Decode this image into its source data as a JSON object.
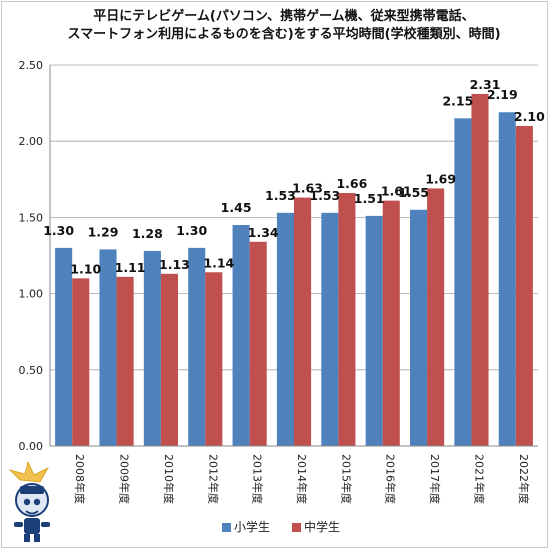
{
  "chart_data": {
    "type": "bar",
    "title_lines": [
      "平日にテレビゲーム(パソコン、携帯ゲーム機、従来型携帯電話、",
      "スマートフォン利用によるものを含む)をする平均時間(学校種類別、時間)"
    ],
    "categories": [
      "2008年度",
      "2009年度",
      "2010年度",
      "2012年度",
      "2013年度",
      "2014年度",
      "2015年度",
      "2016年度",
      "2017年度",
      "2021年度",
      "2022年度"
    ],
    "series": [
      {
        "name": "小学生",
        "color": "#4f81bd",
        "values": [
          1.3,
          1.29,
          1.28,
          1.3,
          1.45,
          1.53,
          1.53,
          1.51,
          1.55,
          2.15,
          2.19
        ],
        "labels": [
          "1.30",
          "1.29",
          "1.28",
          "1.30",
          "1.45",
          "1.53",
          "1.53",
          "1.51",
          "1.55",
          "2.15",
          "2.19"
        ]
      },
      {
        "name": "中学生",
        "color": "#c0504d",
        "values": [
          1.1,
          1.11,
          1.13,
          1.14,
          1.34,
          1.63,
          1.66,
          1.61,
          1.69,
          2.31,
          2.1
        ],
        "labels": [
          "1.10",
          "1.11",
          "1.13",
          "1.14",
          "1.34",
          "1.63",
          "1.66",
          "1.61",
          "1.69",
          "2.31",
          "2.10"
        ]
      }
    ],
    "yticks": [
      "0.00",
      "0.50",
      "1.00",
      "1.50",
      "2.00",
      "2.50"
    ],
    "ylim": [
      0,
      2.5
    ],
    "grid": true,
    "legend": "bottom"
  },
  "watermark": {
    "text": "ガベージニュース"
  }
}
